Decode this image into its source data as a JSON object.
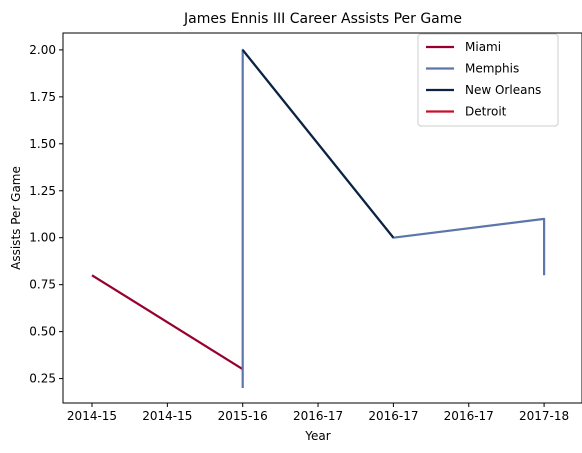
{
  "chart_data": {
    "type": "line",
    "title": "James Ennis III Career Assists Per Game",
    "xlabel": "Year",
    "ylabel": "Assists Per Game",
    "x_ticks": [
      "2014-15",
      "2014-15",
      "2015-16",
      "2016-17",
      "2016-17",
      "2016-17",
      "2017-18"
    ],
    "y_ticks": [
      "0.25",
      "0.50",
      "0.75",
      "1.00",
      "1.25",
      "1.50",
      "1.75",
      "2.00"
    ],
    "y_tick_values": [
      0.25,
      0.5,
      0.75,
      1.0,
      1.25,
      1.5,
      1.75,
      2.0
    ],
    "ylim": [
      0.12,
      2.09
    ],
    "legend_position": "upper right",
    "grid": false,
    "series": [
      {
        "name": "Miami",
        "color": "#98002E",
        "x": [
          0,
          1
        ],
        "y": [
          0.8,
          0.3
        ]
      },
      {
        "name": "Memphis",
        "color": "#5D76A9",
        "x": [
          1,
          1,
          2,
          3,
          3
        ],
        "y": [
          0.2,
          2.0,
          1.0,
          1.1,
          0.8
        ]
      },
      {
        "name": "New Orleans",
        "color": "#0C2340",
        "x": [
          1,
          2
        ],
        "y": [
          2.0,
          1.0
        ]
      },
      {
        "name": "Detroit",
        "color": "#C8102E",
        "x": [],
        "y": []
      }
    ]
  }
}
